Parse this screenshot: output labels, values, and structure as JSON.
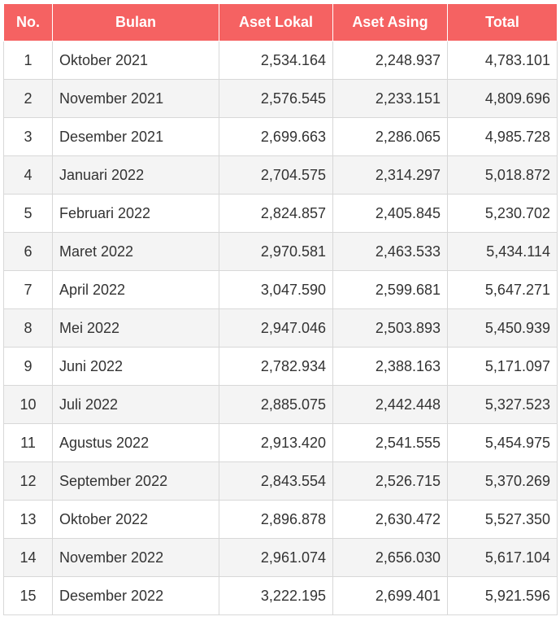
{
  "columns": [
    "No.",
    "Bulan",
    "Aset Lokal",
    "Aset Asing",
    "Total"
  ],
  "rows": [
    {
      "no": "1",
      "bulan": "Oktober 2021",
      "lokal": "2,534.164",
      "asing": "2,248.937",
      "total": "4,783.101"
    },
    {
      "no": "2",
      "bulan": "November 2021",
      "lokal": "2,576.545",
      "asing": "2,233.151",
      "total": "4,809.696"
    },
    {
      "no": "3",
      "bulan": "Desember 2021",
      "lokal": "2,699.663",
      "asing": "2,286.065",
      "total": "4,985.728"
    },
    {
      "no": "4",
      "bulan": "Januari 2022",
      "lokal": "2,704.575",
      "asing": "2,314.297",
      "total": "5,018.872"
    },
    {
      "no": "5",
      "bulan": "Februari 2022",
      "lokal": "2,824.857",
      "asing": "2,405.845",
      "total": "5,230.702"
    },
    {
      "no": "6",
      "bulan": "Maret 2022",
      "lokal": "2,970.581",
      "asing": "2,463.533",
      "total": "5,434.114"
    },
    {
      "no": "7",
      "bulan": "April 2022",
      "lokal": "3,047.590",
      "asing": "2,599.681",
      "total": "5,647.271"
    },
    {
      "no": "8",
      "bulan": "Mei 2022",
      "lokal": "2,947.046",
      "asing": "2,503.893",
      "total": "5,450.939"
    },
    {
      "no": "9",
      "bulan": "Juni 2022",
      "lokal": "2,782.934",
      "asing": "2,388.163",
      "total": "5,171.097"
    },
    {
      "no": "10",
      "bulan": "Juli 2022",
      "lokal": "2,885.075",
      "asing": "2,442.448",
      "total": "5,327.523"
    },
    {
      "no": "11",
      "bulan": "Agustus 2022",
      "lokal": "2,913.420",
      "asing": "2,541.555",
      "total": "5,454.975"
    },
    {
      "no": "12",
      "bulan": "September 2022",
      "lokal": "2,843.554",
      "asing": "2,526.715",
      "total": "5,370.269"
    },
    {
      "no": "13",
      "bulan": "Oktober 2022",
      "lokal": "2,896.878",
      "asing": "2,630.472",
      "total": "5,527.350"
    },
    {
      "no": "14",
      "bulan": "November 2022",
      "lokal": "2,961.074",
      "asing": "2,656.030",
      "total": "5,617.104"
    },
    {
      "no": "15",
      "bulan": "Desember 2022",
      "lokal": "3,222.195",
      "asing": "2,699.401",
      "total": "5,921.596"
    }
  ],
  "colors": {
    "header_bg": "#f56262",
    "header_text": "#ffffff",
    "row_alt_bg": "#f4f4f4",
    "border": "#d8d8d8"
  }
}
